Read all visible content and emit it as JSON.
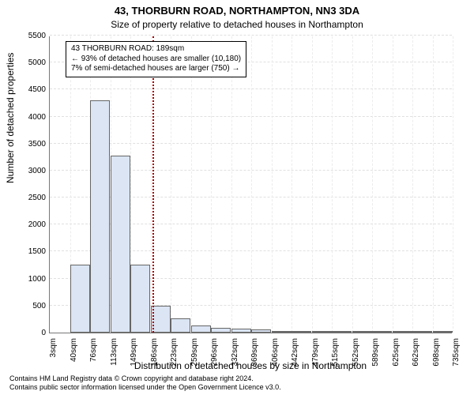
{
  "title": "43, THORBURN ROAD, NORTHAMPTON, NN3 3DA",
  "subtitle": "Size of property relative to detached houses in Northampton",
  "chart": {
    "type": "histogram",
    "background_color": "#ffffff",
    "grid_color": "#e0e0e0",
    "axis_color": "#777777",
    "bar_fill_color": "#dbe5f4",
    "bar_border_color": "#666666",
    "ref_line_color": "#a00000",
    "ref_line_width": 2,
    "ref_line_x": 189,
    "xlabel": "Distribution of detached houses by size in Northampton",
    "ylabel": "Number of detached properties",
    "xlim": [
      0,
      740
    ],
    "ylim": [
      0,
      5500
    ],
    "ytick_step": 500,
    "x_ticks": [
      "3sqm",
      "40sqm",
      "76sqm",
      "113sqm",
      "149sqm",
      "186sqm",
      "223sqm",
      "259sqm",
      "296sqm",
      "332sqm",
      "369sqm",
      "406sqm",
      "442sqm",
      "479sqm",
      "515sqm",
      "552sqm",
      "589sqm",
      "625sqm",
      "662sqm",
      "698sqm",
      "735sqm"
    ],
    "bar_width_x": 36.7,
    "values": [
      0,
      1260,
      4300,
      3280,
      1260,
      500,
      260,
      130,
      90,
      70,
      60,
      30,
      20,
      10,
      10,
      10,
      5,
      5,
      5,
      5
    ],
    "title_fontsize": 13,
    "subtitle_fontsize": 12,
    "label_fontsize": 12,
    "tick_fontsize": 10,
    "annotation_fontsize": 10
  },
  "annotation": {
    "line1": "43 THORBURN ROAD: 189sqm",
    "line2": "← 93% of detached houses are smaller (10,180)",
    "line3": "7% of semi-detached houses are larger (750) →"
  },
  "footer": {
    "line1": "Contains HM Land Registry data © Crown copyright and database right 2024.",
    "line2": "Contains public sector information licensed under the Open Government Licence v3.0."
  }
}
